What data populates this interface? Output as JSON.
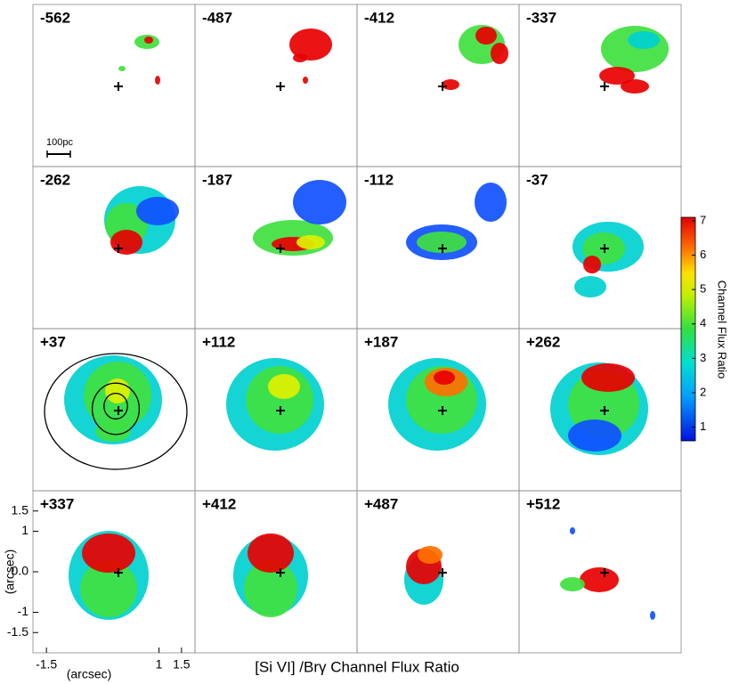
{
  "panels": [
    {
      "label": "-562"
    },
    {
      "label": "-487"
    },
    {
      "label": "-412"
    },
    {
      "label": "-337"
    },
    {
      "label": "-262"
    },
    {
      "label": "-187"
    },
    {
      "label": "-112"
    },
    {
      "label": "-37"
    },
    {
      "label": "+37"
    },
    {
      "label": "+112"
    },
    {
      "label": "+187"
    },
    {
      "label": "+262"
    },
    {
      "label": "+337"
    },
    {
      "label": "+412"
    },
    {
      "label": "+487"
    },
    {
      "label": "+512"
    }
  ],
  "axes": {
    "xlim": [
      -1.8,
      1.8
    ],
    "ylim": [
      -2,
      2
    ],
    "xlabel": "(arcsec)",
    "ylabel": "(arcsec)",
    "xticks": [
      -1.5,
      1,
      1.5
    ],
    "yticks": [
      1.5,
      1,
      {
        "value": 0,
        "label": "0.0"
      },
      -1,
      -1.5
    ]
  },
  "scale_bar": "100pc",
  "colorbar": {
    "label": "Channel Flux Ratio",
    "lim": [
      0.6,
      7.1
    ],
    "ticks": [
      1,
      2,
      3,
      4,
      5,
      6,
      7
    ]
  },
  "caption": "[Si VI] /Brγ Channel Flux Ratio"
}
